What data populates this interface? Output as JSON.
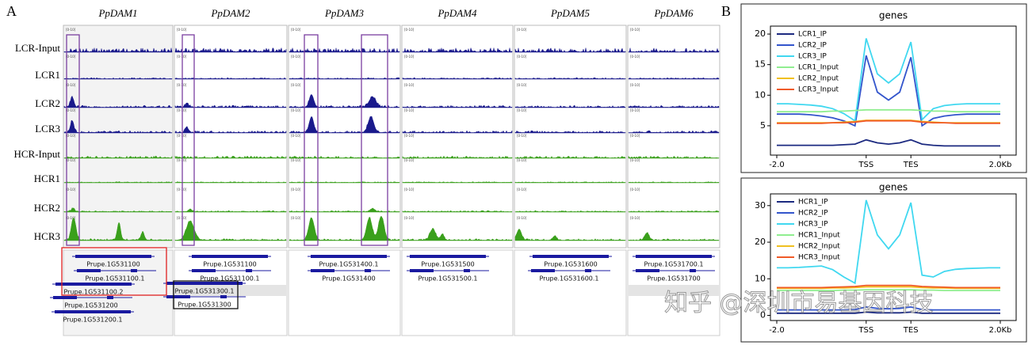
{
  "panel_a": {
    "label": "A",
    "columns": [
      "PpDAM1",
      "PpDAM2",
      "PpDAM3",
      "PpDAM4",
      "PpDAM5",
      "PpDAM6"
    ],
    "rows": [
      "LCR-Input",
      "LCR1",
      "LCR2",
      "LCR3",
      "HCR-Input",
      "HCR1",
      "HCR2",
      "HCR3"
    ],
    "track_scale": "[0-10]",
    "genes": [
      [
        "Prupe.1G531100",
        "Prupe.1G531100.1",
        "Prupe.1G531100.2",
        "Prupe.1G531200",
        "Prupe.1G531200.1"
      ],
      [
        "Prupe.1G531100",
        "Prupe.1G531100.1",
        "Prupe.1G531300.1",
        "Prupe.1G531300"
      ],
      [
        "Prupe.1G531400.1",
        "Prupe.1G531400"
      ],
      [
        "Prupe.1G531500",
        "Prupe.1G531500.1"
      ],
      [
        "Prupe.1G531600",
        "Prupe.1G531600.1"
      ],
      [
        "Prupe.1G531700.1",
        "Prupe.1G531700"
      ]
    ]
  },
  "panel_b": {
    "label": "B"
  },
  "watermark": "知乎 @深圳市易基因科技",
  "chart_data": [
    {
      "type": "line",
      "title": "genes",
      "legend": "upper left",
      "categories": [
        "-2.0",
        null,
        null,
        null,
        null,
        null,
        null,
        null,
        "TSS",
        null,
        null,
        null,
        "TES",
        null,
        null,
        null,
        null,
        null,
        null,
        null,
        "2.0Kb"
      ],
      "ylim": [
        0.2,
        21.3
      ],
      "yticks": [
        5,
        10,
        15,
        20
      ],
      "series": [
        {
          "name": "LCR1_IP",
          "color": "#1c2a80",
          "values": [
            1.8,
            1.8,
            1.8,
            1.8,
            1.8,
            1.8,
            1.9,
            2.0,
            2.7,
            2.2,
            2.0,
            2.2,
            2.7,
            2.0,
            1.8,
            1.7,
            1.7,
            1.7,
            1.7,
            1.7,
            1.7
          ]
        },
        {
          "name": "LCR2_IP",
          "color": "#3355cc",
          "values": [
            6.9,
            6.9,
            6.9,
            6.8,
            6.6,
            6.3,
            5.8,
            5.0,
            16.5,
            10.5,
            9.2,
            10.5,
            16.2,
            5.0,
            6.2,
            6.6,
            6.8,
            6.9,
            6.9,
            6.9,
            6.9
          ]
        },
        {
          "name": "LCR3_IP",
          "color": "#40d8f0",
          "values": [
            8.6,
            8.6,
            8.5,
            8.4,
            8.2,
            7.8,
            7.0,
            5.8,
            19.3,
            13.5,
            12.0,
            13.5,
            18.7,
            6.0,
            7.8,
            8.3,
            8.5,
            8.6,
            8.6,
            8.6,
            8.6
          ]
        },
        {
          "name": "LCR1_Input",
          "color": "#90ee90",
          "values": [
            7.3,
            7.3,
            7.3,
            7.3,
            7.3,
            7.4,
            7.4,
            7.5,
            7.6,
            7.6,
            7.6,
            7.6,
            7.6,
            7.5,
            7.4,
            7.4,
            7.3,
            7.3,
            7.3,
            7.3,
            7.3
          ]
        },
        {
          "name": "LCR2_Input",
          "color": "#f0c020",
          "values": [
            5.5,
            5.5,
            5.5,
            5.5,
            5.5,
            5.5,
            5.6,
            5.7,
            5.9,
            5.9,
            5.9,
            5.9,
            5.9,
            5.7,
            5.6,
            5.5,
            5.5,
            5.5,
            5.5,
            5.5,
            5.5
          ]
        },
        {
          "name": "LCR3_Input",
          "color": "#f05a28",
          "values": [
            5.4,
            5.4,
            5.4,
            5.4,
            5.4,
            5.5,
            5.5,
            5.6,
            5.8,
            5.8,
            5.8,
            5.8,
            5.8,
            5.6,
            5.5,
            5.5,
            5.4,
            5.4,
            5.4,
            5.4,
            5.4
          ]
        }
      ]
    },
    {
      "type": "line",
      "title": "genes",
      "legend": "upper left",
      "categories": [
        "-2.0",
        null,
        null,
        null,
        null,
        null,
        null,
        null,
        "TSS",
        null,
        null,
        null,
        "TES",
        null,
        null,
        null,
        null,
        null,
        null,
        null,
        "2.0Kb"
      ],
      "ylim": [
        -1.4,
        33.2
      ],
      "yticks": [
        0,
        10,
        20,
        30
      ],
      "series": [
        {
          "name": "HCR1_IP",
          "color": "#1c2a80",
          "values": [
            0.6,
            0.6,
            0.6,
            0.6,
            0.6,
            0.6,
            0.6,
            0.6,
            0.9,
            0.7,
            0.7,
            0.7,
            0.9,
            0.6,
            0.6,
            0.6,
            0.6,
            0.6,
            0.6,
            0.6,
            0.6
          ]
        },
        {
          "name": "HCR2_IP",
          "color": "#3355cc",
          "values": [
            1.5,
            1.5,
            1.5,
            1.5,
            1.5,
            1.5,
            1.5,
            1.6,
            2.3,
            1.9,
            1.8,
            1.9,
            2.3,
            1.6,
            1.5,
            1.5,
            1.5,
            1.5,
            1.5,
            1.5,
            1.5
          ]
        },
        {
          "name": "HCR3_IP",
          "color": "#40d8f0",
          "values": [
            13.0,
            13.0,
            13.1,
            13.3,
            13.5,
            12.5,
            10.5,
            8.8,
            31.5,
            22.0,
            18.2,
            22.0,
            30.8,
            11.0,
            10.5,
            12.0,
            12.6,
            12.8,
            12.9,
            13.0,
            13.0
          ]
        },
        {
          "name": "HCR1_Input",
          "color": "#90ee90",
          "values": [
            6.8,
            6.8,
            6.8,
            6.8,
            6.8,
            6.8,
            6.9,
            6.9,
            7.0,
            7.0,
            7.0,
            7.0,
            7.0,
            6.9,
            6.9,
            6.8,
            6.8,
            6.8,
            6.8,
            6.8,
            6.8
          ]
        },
        {
          "name": "HCR2_Input",
          "color": "#f0c020",
          "values": [
            7.4,
            7.4,
            7.4,
            7.4,
            7.4,
            7.5,
            7.5,
            7.6,
            7.8,
            7.8,
            7.8,
            7.8,
            7.8,
            7.6,
            7.5,
            7.5,
            7.4,
            7.4,
            7.4,
            7.4,
            7.4
          ]
        },
        {
          "name": "HCR3_Input",
          "color": "#f05a28",
          "values": [
            7.6,
            7.6,
            7.6,
            7.6,
            7.6,
            7.7,
            7.8,
            7.9,
            8.2,
            8.2,
            8.2,
            8.2,
            8.2,
            7.9,
            7.8,
            7.7,
            7.6,
            7.6,
            7.6,
            7.6,
            7.6
          ]
        }
      ]
    }
  ]
}
